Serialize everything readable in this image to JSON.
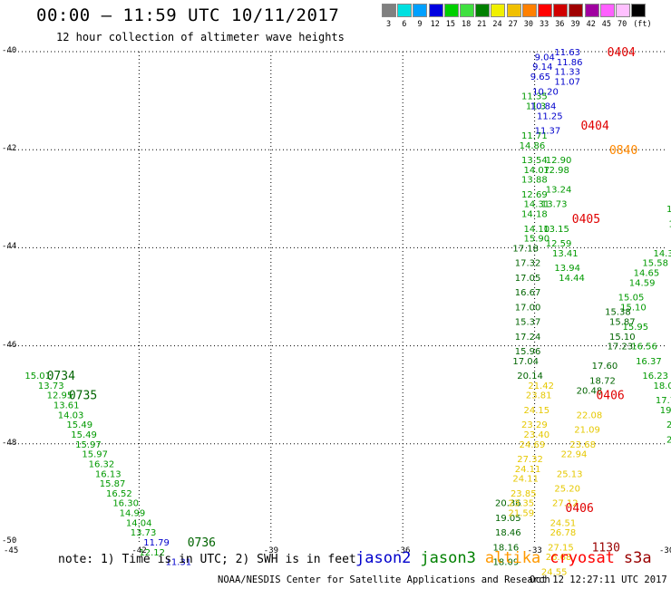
{
  "header": {
    "title": "00:00 – 11:59 UTC 10/11/2017",
    "subtitle": "12 hour collection of altimeter wave heights"
  },
  "swh_legend": {
    "colors": [
      "#808080",
      "#00e0e0",
      "#00a0ff",
      "#0000e0",
      "#00d000",
      "#40e040",
      "#008000",
      "#f0f000",
      "#f0c000",
      "#ff8000",
      "#ff0000",
      "#d00000",
      "#a00000",
      "#a000a0",
      "#ff60ff",
      "#ffc0ff",
      "#000000"
    ],
    "labels": [
      "3",
      "6",
      "9",
      "12",
      "15",
      "18",
      "21",
      "24",
      "27",
      "30",
      "33",
      "36",
      "39",
      "42",
      "45",
      "70",
      "(ft)"
    ]
  },
  "axes": {
    "lon_ticks": [
      "-45",
      "-42",
      "-39",
      "-36",
      "-33",
      "-30"
    ],
    "lat_ticks": [
      "-40",
      "-42",
      "-44",
      "-46",
      "-48",
      "-50"
    ]
  },
  "footer": {
    "note": "note:  1) Time is in UTC; 2) SWH is in feet",
    "credit": "NOAA/NESDIS Center for Satellite Applications and Research",
    "generated": "Oct 12 12:27:11 UTC 2017"
  },
  "satellites": [
    {
      "name": "jason2",
      "color": "#0000cc"
    },
    {
      "name": "jason3",
      "color": "#008000"
    },
    {
      "name": "altika",
      "color": "#ff9900"
    },
    {
      "name": "cryosat",
      "color": "#ff0000"
    },
    {
      "name": "s3a",
      "color": "#990000"
    }
  ],
  "chart_data": {
    "type": "scatter",
    "title": "00:00 – 11:59 UTC 10/11/2017",
    "subtitle": "12 hour collection of altimeter wave heights",
    "xlim": [
      -45,
      -30
    ],
    "ylim": [
      -50,
      -40
    ],
    "x_ticks": [
      -45,
      -42,
      -39,
      -36,
      -33,
      -30
    ],
    "y_ticks": [
      -40,
      -42,
      -44,
      -46,
      -48,
      -50
    ],
    "grid": true,
    "units": "ft",
    "series": [
      {
        "name": "jason3",
        "color": "#009900",
        "points": [
          {
            "lon": -44.6,
            "lat": -46.6,
            "v": "15.01"
          },
          {
            "lon": -44.3,
            "lat": -46.8,
            "v": "13.73"
          },
          {
            "lon": -44.1,
            "lat": -47.0,
            "v": "12.95"
          },
          {
            "lon": -43.95,
            "lat": -47.2,
            "v": "13.61"
          },
          {
            "lon": -43.85,
            "lat": -47.4,
            "v": "14.03"
          },
          {
            "lon": -43.65,
            "lat": -47.6,
            "v": "15.49"
          },
          {
            "lon": -43.55,
            "lat": -47.8,
            "v": "15.49"
          },
          {
            "lon": -43.45,
            "lat": -48.0,
            "v": "15.97"
          },
          {
            "lon": -43.3,
            "lat": -48.2,
            "v": "15.97"
          },
          {
            "lon": -43.15,
            "lat": -48.4,
            "v": "16.32"
          },
          {
            "lon": -43.0,
            "lat": -48.6,
            "v": "16.13"
          },
          {
            "lon": -42.9,
            "lat": -48.8,
            "v": "15.87"
          },
          {
            "lon": -42.75,
            "lat": -49.0,
            "v": "16.52"
          },
          {
            "lon": -42.6,
            "lat": -49.2,
            "v": "16.30"
          },
          {
            "lon": -42.45,
            "lat": -49.4,
            "v": "14.99"
          },
          {
            "lon": -42.3,
            "lat": -49.6,
            "v": "14.04"
          },
          {
            "lon": -42.2,
            "lat": -49.8,
            "v": "13.73"
          },
          {
            "lon": -42.0,
            "lat": -50.2,
            "v": "12.12"
          },
          {
            "lon": -33.3,
            "lat": -40.9,
            "v": "11.35"
          },
          {
            "lon": -33.2,
            "lat": -41.1,
            "v": "11.3"
          },
          {
            "lon": -33.3,
            "lat": -41.7,
            "v": "11.71"
          },
          {
            "lon": -33.35,
            "lat": -41.9,
            "v": "14.86"
          },
          {
            "lon": -33.3,
            "lat": -42.2,
            "v": "13.54"
          },
          {
            "lon": -33.25,
            "lat": -42.4,
            "v": "14.07"
          },
          {
            "lon": -33.3,
            "lat": -42.6,
            "v": "13.88"
          },
          {
            "lon": -33.3,
            "lat": -42.9,
            "v": "12.69"
          },
          {
            "lon": -33.25,
            "lat": -43.1,
            "v": "14.31"
          },
          {
            "lon": -33.3,
            "lat": -43.3,
            "v": "14.18"
          },
          {
            "lon": -33.25,
            "lat": -43.6,
            "v": "14.10"
          },
          {
            "lon": -33.25,
            "lat": -43.8,
            "v": "15.90"
          },
          {
            "lon": -32.75,
            "lat": -42.2,
            "v": "12.90"
          },
          {
            "lon": -32.8,
            "lat": -42.4,
            "v": "12.98"
          },
          {
            "lon": -32.75,
            "lat": -42.8,
            "v": "13.24"
          },
          {
            "lon": -32.85,
            "lat": -43.1,
            "v": "13.73"
          },
          {
            "lon": -32.8,
            "lat": -43.6,
            "v": "13.15"
          },
          {
            "lon": -32.75,
            "lat": -43.9,
            "v": "12.59"
          },
          {
            "lon": -32.6,
            "lat": -44.1,
            "v": "13.41"
          },
          {
            "lon": -32.55,
            "lat": -44.4,
            "v": "13.94"
          },
          {
            "lon": -32.45,
            "lat": -44.6,
            "v": "14.44"
          },
          {
            "lon": -30.0,
            "lat": -43.2,
            "v": "15.0"
          },
          {
            "lon": -29.95,
            "lat": -43.5,
            "v": "15.0"
          },
          {
            "lon": -29.9,
            "lat": -43.8,
            "v": "15.10"
          },
          {
            "lon": -30.3,
            "lat": -44.1,
            "v": "14.36"
          },
          {
            "lon": -30.55,
            "lat": -44.3,
            "v": "15.58"
          },
          {
            "lon": -30.75,
            "lat": -44.5,
            "v": "14.65"
          },
          {
            "lon": -30.85,
            "lat": -44.7,
            "v": "14.59"
          },
          {
            "lon": -31.1,
            "lat": -45.0,
            "v": "15.05"
          },
          {
            "lon": -31.05,
            "lat": -45.2,
            "v": "15.10"
          },
          {
            "lon": -31.0,
            "lat": -45.6,
            "v": "15.95"
          },
          {
            "lon": -30.8,
            "lat": -46.0,
            "v": "16.56"
          },
          {
            "lon": -30.7,
            "lat": -46.3,
            "v": "16.37"
          },
          {
            "lon": -30.55,
            "lat": -46.6,
            "v": "16.23"
          },
          {
            "lon": -30.3,
            "lat": -46.8,
            "v": "18.06"
          },
          {
            "lon": -30.25,
            "lat": -47.1,
            "v": "17.72"
          },
          {
            "lon": -30.15,
            "lat": -47.3,
            "v": "19.4"
          },
          {
            "lon": -30.0,
            "lat": -47.6,
            "v": "21"
          },
          {
            "lon": -30.0,
            "lat": -47.9,
            "v": "20"
          }
        ]
      },
      {
        "name": "jason2",
        "color": "#0000cc",
        "points": [
          {
            "lon": -32.55,
            "lat": -40.0,
            "v": "11.63"
          },
          {
            "lon": -32.5,
            "lat": -40.2,
            "v": "11.86"
          },
          {
            "lon": -32.55,
            "lat": -40.4,
            "v": "11.33"
          },
          {
            "lon": -32.55,
            "lat": -40.6,
            "v": "11.07"
          },
          {
            "lon": -33.0,
            "lat": -40.1,
            "v": "9.04"
          },
          {
            "lon": -33.05,
            "lat": -40.3,
            "v": "9.14"
          },
          {
            "lon": -33.1,
            "lat": -40.5,
            "v": "9.65"
          },
          {
            "lon": -33.05,
            "lat": -40.8,
            "v": "10.20"
          },
          {
            "lon": -33.1,
            "lat": -41.1,
            "v": "10.84"
          },
          {
            "lon": -32.95,
            "lat": -41.3,
            "v": "11.25"
          },
          {
            "lon": -33.0,
            "lat": -41.6,
            "v": "11.37"
          },
          {
            "lon": -41.9,
            "lat": -50.0,
            "v": "11.79"
          },
          {
            "lon": -41.4,
            "lat": -50.4,
            "v": "11.31"
          }
        ]
      },
      {
        "name": "jason3-dark",
        "color": "#006400",
        "points": [
          {
            "lon": -33.5,
            "lat": -44.0,
            "v": "17.18"
          },
          {
            "lon": -33.45,
            "lat": -44.3,
            "v": "17.32"
          },
          {
            "lon": -33.45,
            "lat": -44.6,
            "v": "17.05"
          },
          {
            "lon": -33.45,
            "lat": -44.9,
            "v": "16.67"
          },
          {
            "lon": -33.45,
            "lat": -45.2,
            "v": "17.00"
          },
          {
            "lon": -33.45,
            "lat": -45.5,
            "v": "15.37"
          },
          {
            "lon": -33.45,
            "lat": -45.8,
            "v": "17.24"
          },
          {
            "lon": -33.45,
            "lat": -46.1,
            "v": "15.96"
          },
          {
            "lon": -33.5,
            "lat": -46.3,
            "v": "17.04"
          },
          {
            "lon": -33.4,
            "lat": -46.6,
            "v": "20.14"
          },
          {
            "lon": -31.4,
            "lat": -45.3,
            "v": "15.38"
          },
          {
            "lon": -31.3,
            "lat": -45.5,
            "v": "15.87"
          },
          {
            "lon": -31.3,
            "lat": -45.8,
            "v": "15.10"
          },
          {
            "lon": -31.35,
            "lat": -46.0,
            "v": "17.23"
          },
          {
            "lon": -31.7,
            "lat": -46.4,
            "v": "17.60"
          },
          {
            "lon": -31.75,
            "lat": -46.7,
            "v": "18.72"
          },
          {
            "lon": -32.05,
            "lat": -46.9,
            "v": "20.48"
          },
          {
            "lon": -33.9,
            "lat": -49.2,
            "v": "20.36"
          },
          {
            "lon": -33.9,
            "lat": -49.5,
            "v": "19.05"
          },
          {
            "lon": -33.9,
            "lat": -49.8,
            "v": "18.46"
          },
          {
            "lon": -33.95,
            "lat": -50.1,
            "v": "18.16"
          },
          {
            "lon": -33.95,
            "lat": -50.4,
            "v": "18.09"
          }
        ]
      },
      {
        "name": "altika",
        "color": "#e6c800",
        "points": [
          {
            "lon": -33.15,
            "lat": -46.8,
            "v": "21.42"
          },
          {
            "lon": -33.2,
            "lat": -47.0,
            "v": "23.81"
          },
          {
            "lon": -33.25,
            "lat": -47.3,
            "v": "24.15"
          },
          {
            "lon": -33.3,
            "lat": -47.6,
            "v": "23.29"
          },
          {
            "lon": -33.25,
            "lat": -47.8,
            "v": "23.40"
          },
          {
            "lon": -33.35,
            "lat": -48.0,
            "v": "24.69"
          },
          {
            "lon": -33.4,
            "lat": -48.3,
            "v": "27.32"
          },
          {
            "lon": -33.45,
            "lat": -48.5,
            "v": "24.11"
          },
          {
            "lon": -33.5,
            "lat": -48.7,
            "v": "24.11"
          },
          {
            "lon": -33.55,
            "lat": -49.0,
            "v": "23.85"
          },
          {
            "lon": -33.6,
            "lat": -49.2,
            "v": "23.35"
          },
          {
            "lon": -33.6,
            "lat": -49.4,
            "v": "21.59"
          },
          {
            "lon": -32.05,
            "lat": -47.4,
            "v": "22.08"
          },
          {
            "lon": -32.1,
            "lat": -47.7,
            "v": "21.09"
          },
          {
            "lon": -32.2,
            "lat": -48.0,
            "v": "23.68"
          },
          {
            "lon": -32.4,
            "lat": -48.2,
            "v": "22.94"
          },
          {
            "lon": -32.5,
            "lat": -48.6,
            "v": "25.13"
          },
          {
            "lon": -32.55,
            "lat": -48.9,
            "v": "25.20"
          },
          {
            "lon": -32.6,
            "lat": -49.2,
            "v": "27.12"
          },
          {
            "lon": -32.65,
            "lat": -49.6,
            "v": "24.51"
          },
          {
            "lon": -32.65,
            "lat": -49.8,
            "v": "26.78"
          },
          {
            "lon": -32.7,
            "lat": -50.1,
            "v": "27.15"
          },
          {
            "lon": -32.75,
            "lat": -50.3,
            "v": "26.68"
          },
          {
            "lon": -32.85,
            "lat": -50.6,
            "v": "24.55"
          }
        ]
      }
    ],
    "time_labels": [
      {
        "lon": -44.1,
        "lat": -46.6,
        "v": "0734",
        "color": "#006400"
      },
      {
        "lon": -43.6,
        "lat": -47.0,
        "v": "0735",
        "color": "#006400"
      },
      {
        "lon": -40.9,
        "lat": -50.0,
        "v": "0736",
        "color": "#006400"
      },
      {
        "lon": -31.35,
        "lat": -40.0,
        "v": "0404",
        "color": "#e00000"
      },
      {
        "lon": -31.95,
        "lat": -41.5,
        "v": "0404",
        "color": "#e00000"
      },
      {
        "lon": -31.3,
        "lat": -42.0,
        "v": "0840",
        "color": "#ff8800"
      },
      {
        "lon": -32.15,
        "lat": -43.4,
        "v": "0405",
        "color": "#e00000"
      },
      {
        "lon": -31.6,
        "lat": -47.0,
        "v": "0406",
        "color": "#e00000"
      },
      {
        "lon": -32.3,
        "lat": -49.3,
        "v": "0406",
        "color": "#e00000"
      },
      {
        "lon": -31.7,
        "lat": -50.1,
        "v": "1130",
        "color": "#990000"
      },
      {
        "lon": -29.7,
        "lat": -45.9,
        "v": "08",
        "color": "#ff8800"
      },
      {
        "lon": -29.9,
        "lat": -46.2,
        "v": "112",
        "color": "#990000"
      }
    ]
  }
}
